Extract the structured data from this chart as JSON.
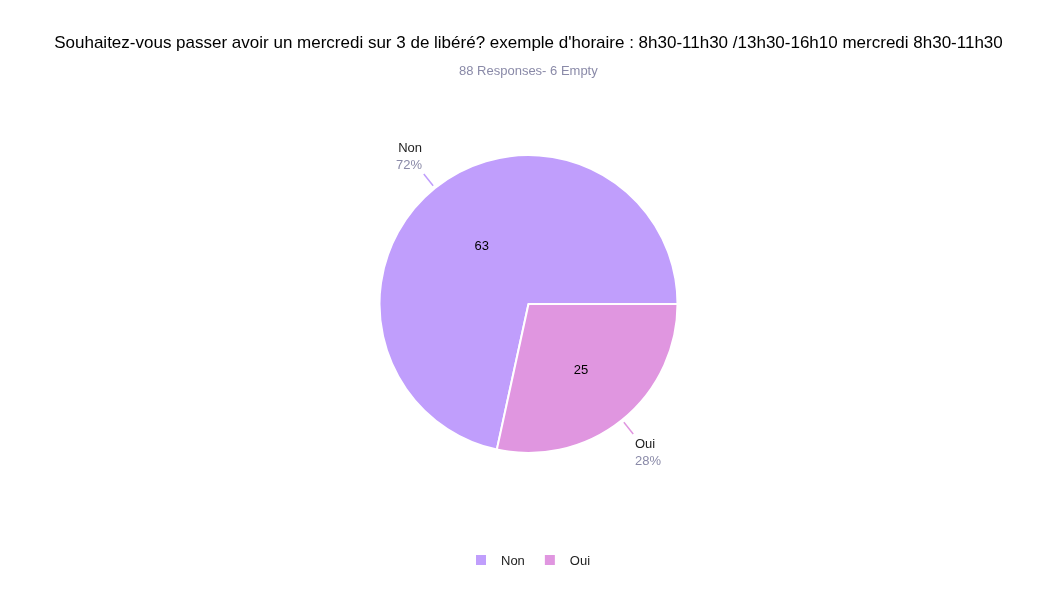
{
  "chart_data": {
    "type": "pie",
    "title": "Souhaitez-vous passer avoir un mercredi sur 3 de libéré? exemple d'horaire : 8h30-11h30 /13h30-16h10 mercredi 8h30-11h30",
    "subtitle": "88 Responses- 6 Empty",
    "categories": [
      "Non",
      "Oui"
    ],
    "values": [
      63,
      25
    ],
    "colors": [
      "#c09efc",
      "#e096e0"
    ],
    "data_labels": true,
    "annotations": [
      "72%",
      "28%"
    ],
    "legend": "bottom"
  }
}
